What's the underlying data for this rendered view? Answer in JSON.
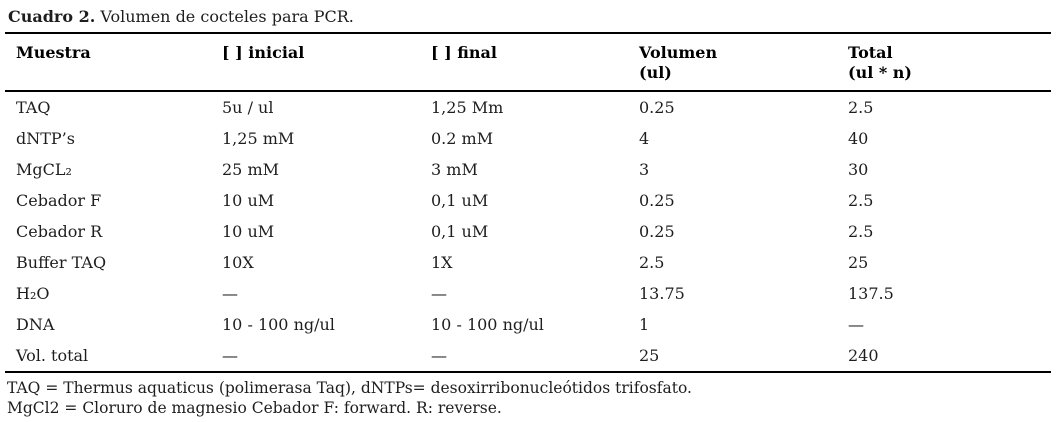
{
  "title": {
    "label": "Cuadro 2.",
    "caption": "Volumen de cocteles para PCR."
  },
  "table": {
    "headers": [
      {
        "line1": "Muestra",
        "line2": ""
      },
      {
        "line1": "[ ] inicial",
        "line2": ""
      },
      {
        "line1": "[ ] final",
        "line2": ""
      },
      {
        "line1": "Volumen",
        "line2": "(ul)"
      },
      {
        "line1": "Total",
        "line2": "(ul * n)"
      }
    ],
    "rows": [
      {
        "cells": [
          "TAQ",
          "5u / ul",
          "1,25 Mm",
          "0.25",
          "2.5"
        ]
      },
      {
        "cells": [
          "dNTP’s",
          "1,25 mM",
          "0.2 mM",
          "4",
          "40"
        ]
      },
      {
        "cells": [
          "MgCL₂",
          "25 mM",
          "3 mM",
          "3",
          "30"
        ]
      },
      {
        "cells": [
          "Cebador F",
          "10 uM",
          "0,1 uM",
          "0.25",
          "2.5"
        ]
      },
      {
        "cells": [
          "Cebador R",
          "10 uM",
          "0,1 uM",
          "0.25",
          "2.5"
        ]
      },
      {
        "cells": [
          "Buffer TAQ",
          "10X",
          "1X",
          "2.5",
          "25"
        ]
      },
      {
        "cells": [
          "H₂O",
          "—",
          "—",
          "13.75",
          "137.5"
        ]
      },
      {
        "cells": [
          "DNA",
          "10 - 100 ng/ul",
          "10 - 100 ng/ul",
          "1",
          "—"
        ]
      },
      {
        "cells": [
          "Vol. total",
          "—",
          "—",
          "25",
          "240"
        ]
      }
    ]
  },
  "footnotes": {
    "line1": "TAQ = Thermus aquaticus (polimerasa Taq), dNTPs= desoxirribonucleótidos trifosfato.",
    "line2": "MgCl2 = Cloruro de magnesio Cebador F: forward. R: reverse."
  },
  "colors": {
    "text": "#1e1e1e",
    "rule": "#000000",
    "background": "#ffffff"
  }
}
